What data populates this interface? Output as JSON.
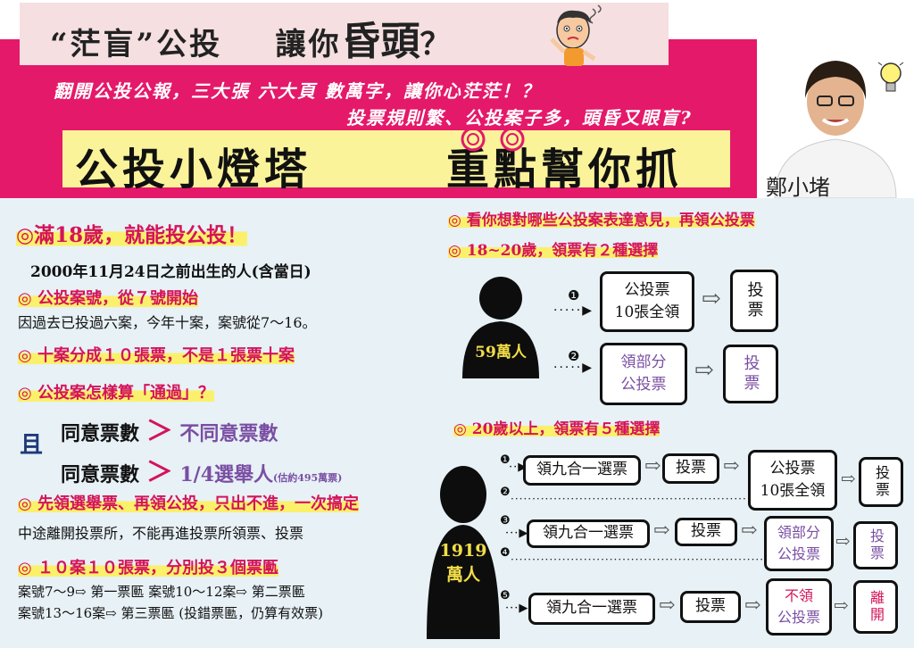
{
  "header": {
    "title_part1": "“茫盲”公投",
    "title_part2": "讓你",
    "title_big": "昏頭",
    "title_end": "？",
    "subtitle1": "翻開公投公報，三大張 六大頁 數萬字，讓你心茫茫！？",
    "subtitle2": "投票規則繁、公投案子多，頭昏又眼盲?",
    "banner_left": "公投小燈塔",
    "banner_right": "重點幫你抓",
    "signature": "鄭小堵"
  },
  "left": {
    "s1_title": "◎滿18歲，就能投公投！",
    "s1_body": "2000年11月24日之前出生的人(含當日)",
    "s2_title": "◎ 公投案號，從７號開始",
    "s2_body": "因過去已投過六案，今年十案，案號從7～16。",
    "s3_title": "◎ 十案分成１０張票，不是１張票十案",
    "s4_title": "◎ 公投案怎樣算「通過」？",
    "cond1_left": "同意票數",
    "cond1_op": "＞",
    "cond1_right": "不同意票數",
    "and_label": "且",
    "cond2_left": "同意票數",
    "cond2_op": "＞",
    "cond2_right": "1/4選舉人",
    "cond2_note": "(估約495萬票)",
    "s5_title": "◎ 先領選舉票、再領公投，只出不進，一次搞定",
    "s5_body": "中途離開投票所，不能再進投票所領票、投票",
    "s6_title": "◎ １０案１０張票，分別投３個票匭",
    "s6_line1": "案號7～9⇨  第一票匭    案號10～12案⇨  第二票匭",
    "s6_line2": "案號13～16案⇨  第三票匭  (投錯票匭，仍算有效票)"
  },
  "right": {
    "r1_title": "◎  看你想對哪些公投案表達意見，再領公投票",
    "r2_title": "◎  18~20歲，領票有２種選擇",
    "group1_people": "59萬人",
    "g1_opt1_num": "❶",
    "g1_opt1_box_line1": "公投票",
    "g1_opt1_box_line2": "10張全領",
    "g1_opt1_vote": "投票",
    "g1_opt2_num": "❷",
    "g1_opt2_box_line1": "領部分",
    "g1_opt2_box_line2": "公投票",
    "g1_opt2_vote": "投票",
    "r3_title": "◎  20歲以上，領票有５種選擇",
    "group2_people_line1": "1919",
    "group2_people_line2": "萬人",
    "g2_nums": [
      "❶",
      "❷",
      "❸",
      "❹",
      "❺"
    ],
    "g2_elect": "領九合一選票",
    "g2_vote": "投票",
    "g2_all_line1": "公投票",
    "g2_all_line2": "10張全領",
    "g2_part_line1": "領部分",
    "g2_part_line2": "公投票",
    "g2_none_line1": "不領",
    "g2_none_line2": "公投票",
    "g2_leave": "離開",
    "arrow_glyph": "⇨"
  },
  "colors": {
    "pink": "#e4196a",
    "yellow": "#faf39a",
    "heading": "#d4145a",
    "purple": "#7a4ea3",
    "people_text": "#f2dd48"
  }
}
